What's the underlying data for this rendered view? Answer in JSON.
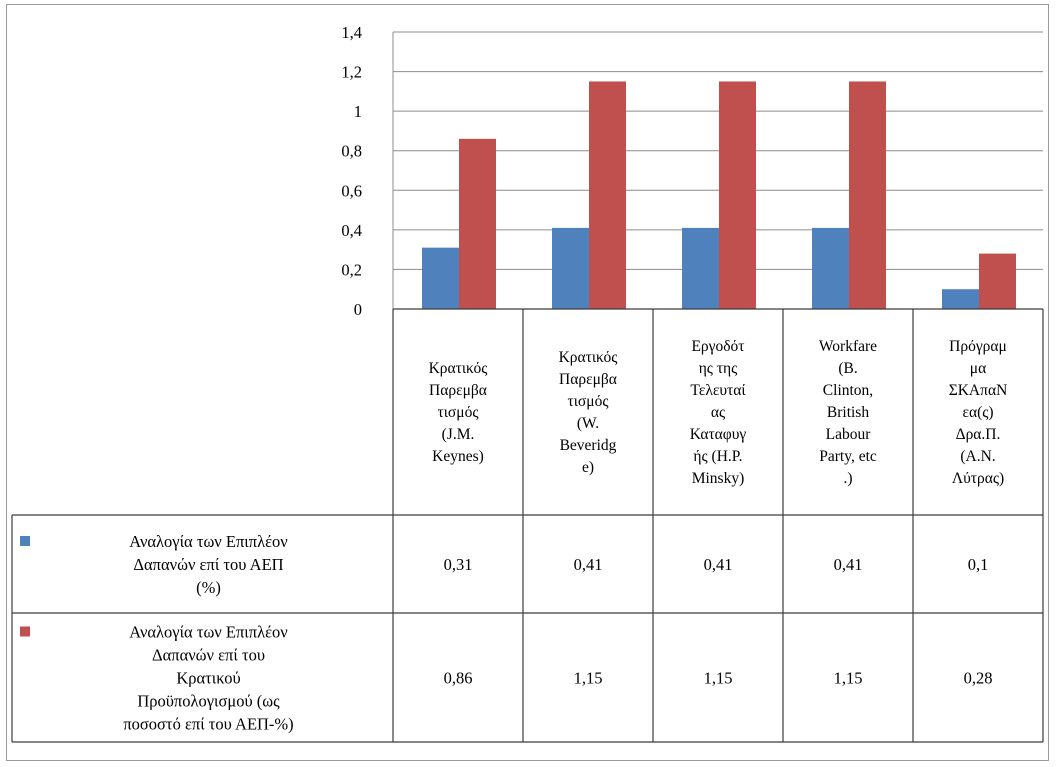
{
  "colors": {
    "series1": "#4f81bd",
    "series2": "#c0504d",
    "grid": "#8c8c8c"
  },
  "chart_data": {
    "type": "bar",
    "title": "",
    "xlabel": "",
    "ylabel": "",
    "ylim": [
      0,
      1.4
    ],
    "yticks": [
      "0",
      "0,2",
      "0,4",
      "0,6",
      "0,8",
      "1",
      "1,2",
      "1,4"
    ],
    "grid": true,
    "legend": "table-left",
    "categories": [
      "Κρατικός Παρεμβατισμός (J.M. Keynes)",
      "Κρατικός Παρεμβατισμός (W. Beveridge)",
      "Εργοδότης της Τελευταίας Καταφυγής (H.P. Minsky)",
      "Workfare (B. Clinton, British Labour Party, etc.)",
      "Πρόγραμμα ΣΚΑπαΝεα(ς) Δρα.Π. (Α.Ν. Λύτρας)"
    ],
    "category_lines": [
      [
        "Κρατικός",
        "Παρεμβα",
        "τισμός",
        "(J.M.",
        "Keynes)"
      ],
      [
        "Κρατικός",
        "Παρεμβα",
        "τισμός",
        "(W.",
        "Beveridg",
        "e)"
      ],
      [
        "Εργοδότ",
        "ης της",
        "Τελευταί",
        "ας",
        "Καταφυγ",
        "ής (H.P.",
        "Minsky)"
      ],
      [
        "Workfare",
        "(B.",
        "Clinton,",
        "British",
        "Labour",
        "Party, etc",
        ".)"
      ],
      [
        "Πρόγραμ",
        "μα",
        "ΣΚΑπαΝ",
        "εα(ς)",
        "Δρα.Π.",
        "(Α.Ν.",
        "Λύτρας)"
      ]
    ],
    "series": [
      {
        "name": "Αναλογία των Επιπλέον Δαπανών επί του ΑΕΠ (%)",
        "name_lines": [
          "Αναλογία των Επιπλέον",
          "Δαπανών επί του ΑΕΠ",
          "(%)"
        ],
        "values": [
          0.31,
          0.41,
          0.41,
          0.41,
          0.1
        ],
        "labels": [
          "0,31",
          "0,41",
          "0,41",
          "0,41",
          "0,1"
        ]
      },
      {
        "name": "Αναλογία των Επιπλέον Δαπανών επί του Κρατικού Προϋπολογισμού (ως ποσοστό επί του ΑΕΠ-%)",
        "name_lines": [
          "Αναλογία των Επιπλέον",
          "Δαπανών επί του",
          "Κρατικού",
          "Προϋπολογισμού (ως",
          "ποσοστό επί του ΑΕΠ-%)"
        ],
        "values": [
          0.86,
          1.15,
          1.15,
          1.15,
          0.28
        ],
        "labels": [
          "0,86",
          "1,15",
          "1,15",
          "1,15",
          "0,28"
        ]
      }
    ]
  }
}
